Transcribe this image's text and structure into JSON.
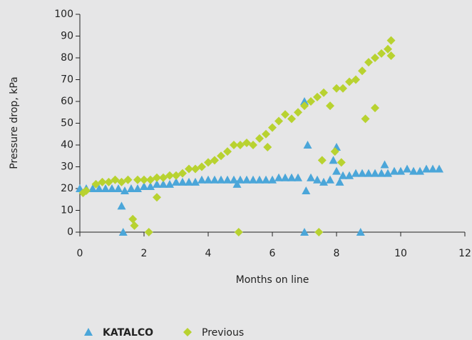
{
  "chart_data": {
    "type": "scatter",
    "x_label": "Months on line",
    "y_label": "Pressure drop, kPa",
    "xlim": [
      0,
      12
    ],
    "xticks": [
      0,
      2,
      4,
      6,
      8,
      10,
      12
    ],
    "ylim": [
      0,
      100
    ],
    "yticks": [
      0,
      10,
      20,
      30,
      40,
      50,
      60,
      70,
      80,
      90,
      100
    ],
    "legend": "bottom-left",
    "series": [
      {
        "name": "KATALCO",
        "color": "#4ba6d9",
        "marker": "triangle",
        "x": [
          0,
          0.2,
          0.4,
          0.6,
          0.8,
          1.0,
          1.2,
          1.3,
          1.35,
          1.4,
          1.6,
          1.8,
          2.0,
          2.2,
          2.4,
          2.6,
          2.8,
          3.0,
          3.2,
          3.4,
          3.6,
          3.8,
          4.0,
          4.2,
          4.4,
          4.6,
          4.8,
          4.9,
          5.0,
          5.2,
          5.4,
          5.6,
          5.8,
          6.0,
          6.2,
          6.4,
          6.6,
          6.8,
          7.0,
          7.0,
          7.05,
          7.1,
          7.2,
          7.4,
          7.6,
          7.8,
          7.9,
          8.0,
          8.0,
          8.1,
          8.2,
          8.4,
          8.6,
          8.75,
          8.8,
          9.0,
          9.2,
          9.4,
          9.5,
          9.6,
          9.8,
          10.0,
          10.2,
          10.4,
          10.6,
          10.8,
          11.0,
          11.2
        ],
        "values": [
          20,
          20,
          20,
          20,
          20,
          20,
          20,
          12,
          0,
          19,
          20,
          20,
          21,
          21,
          22,
          22,
          22,
          23,
          23,
          23,
          23,
          24,
          24,
          24,
          24,
          24,
          24,
          22,
          24,
          24,
          24,
          24,
          24,
          24,
          25,
          25,
          25,
          25,
          0,
          60,
          19,
          40,
          25,
          24,
          23,
          24,
          33,
          39,
          28,
          23,
          26,
          26,
          27,
          0,
          27,
          27,
          27,
          27,
          31,
          27,
          28,
          28,
          29,
          28,
          28,
          29,
          29,
          29
        ]
      },
      {
        "name": "Previous",
        "color": "#b8d230",
        "marker": "diamond",
        "x": [
          0.1,
          0.2,
          0.5,
          0.7,
          0.9,
          1.1,
          1.3,
          1.5,
          1.65,
          1.7,
          1.8,
          2.0,
          2.15,
          2.2,
          2.4,
          2.4,
          2.6,
          2.8,
          3.0,
          3.2,
          3.4,
          3.6,
          3.8,
          4.0,
          4.2,
          4.4,
          4.6,
          4.8,
          4.95,
          5.0,
          5.2,
          5.4,
          5.6,
          5.8,
          5.85,
          6.0,
          6.2,
          6.4,
          6.6,
          6.8,
          7.0,
          7.2,
          7.4,
          7.45,
          7.55,
          7.6,
          7.8,
          7.95,
          8.0,
          8.15,
          8.2,
          8.4,
          8.6,
          8.8,
          8.9,
          9.0,
          9.2,
          9.2,
          9.4,
          9.6,
          9.7,
          9.7
        ],
        "values": [
          18,
          19,
          22,
          23,
          23,
          24,
          23,
          24,
          6,
          3,
          24,
          24,
          0,
          24,
          25,
          16,
          25,
          26,
          26,
          27,
          29,
          29,
          30,
          32,
          33,
          35,
          37,
          40,
          0,
          40,
          41,
          40,
          43,
          45,
          39,
          48,
          51,
          54,
          52,
          55,
          58,
          60,
          62,
          0,
          33,
          64,
          58,
          37,
          66,
          32,
          66,
          69,
          70,
          74,
          52,
          78,
          80,
          57,
          82,
          84,
          88,
          81
        ]
      }
    ]
  }
}
